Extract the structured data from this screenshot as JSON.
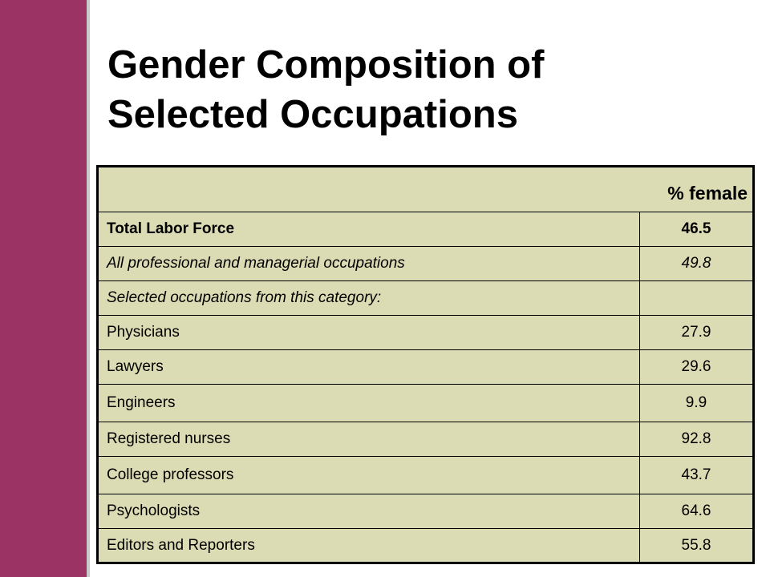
{
  "title": {
    "line1": "Gender Composition of",
    "line2": "Selected Occupations"
  },
  "table": {
    "header": "% female",
    "rows": [
      {
        "label": "Total Labor Force",
        "value": "46.5"
      },
      {
        "label": "All professional and managerial occupations",
        "value": "49.8"
      },
      {
        "label": "Selected occupations from this category:",
        "value": ""
      },
      {
        "label": "Physicians",
        "value": "27.9"
      },
      {
        "label": "Lawyers",
        "value": "29.6"
      },
      {
        "label": "Engineers",
        "value": "9.9"
      },
      {
        "label": "Registered nurses",
        "value": "92.8"
      },
      {
        "label": "College professors",
        "value": "43.7"
      },
      {
        "label": "Psychologists",
        "value": "64.6"
      },
      {
        "label": "Editors and Reporters",
        "value": "55.8"
      }
    ]
  },
  "colors": {
    "accent_bar": "#9b3465",
    "table_fill": "#dcdcb4"
  }
}
